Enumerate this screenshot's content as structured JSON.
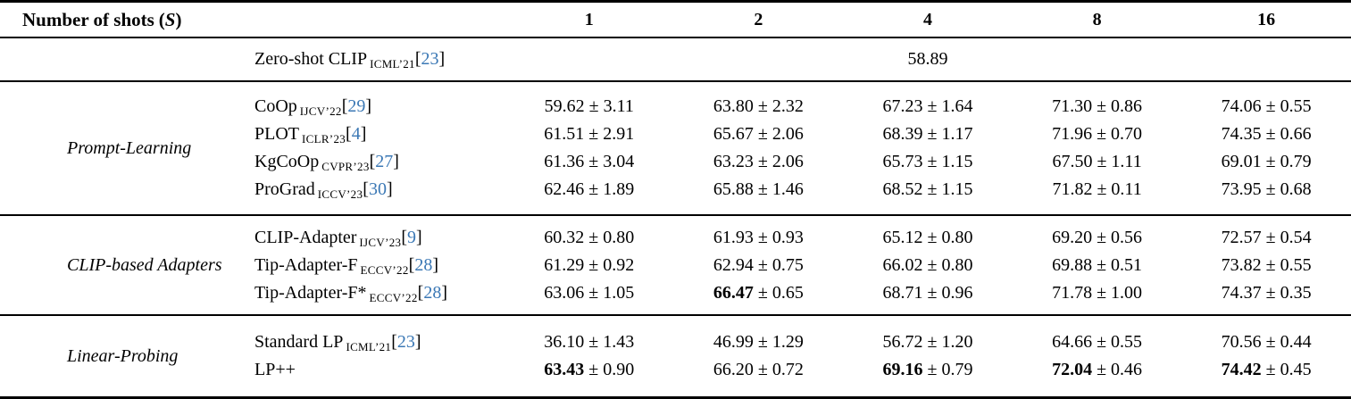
{
  "accent_colors": {
    "citation_blue": "#3b78b5",
    "text": "#000000",
    "background": "#ffffff"
  },
  "table": {
    "header": {
      "label": "Number of shots",
      "paren_open": "(",
      "symbol": "S",
      "paren_close": ")",
      "shot_columns": [
        "1",
        "2",
        "4",
        "8",
        "16"
      ]
    },
    "bracket_open": "[",
    "bracket_close": "]",
    "plus_minus": "±",
    "zero_shot_row": {
      "method": "Zero-shot CLIP",
      "venue": "ICML’21",
      "citation": "23",
      "value": "58.89"
    },
    "groups": [
      {
        "name": "Prompt-Learning",
        "rows": [
          {
            "method": "CoOp",
            "venue": "IJCV’22",
            "citation": "29",
            "cells": [
              {
                "value": "59.62",
                "pm": "3.11",
                "bold": false
              },
              {
                "value": "63.80",
                "pm": "2.32",
                "bold": false
              },
              {
                "value": "67.23",
                "pm": "1.64",
                "bold": false
              },
              {
                "value": "71.30",
                "pm": "0.86",
                "bold": false
              },
              {
                "value": "74.06",
                "pm": "0.55",
                "bold": false
              }
            ]
          },
          {
            "method": "PLOT",
            "venue": "ICLR’23",
            "citation": "4",
            "cells": [
              {
                "value": "61.51",
                "pm": "2.91",
                "bold": false
              },
              {
                "value": "65.67",
                "pm": "2.06",
                "bold": false
              },
              {
                "value": "68.39",
                "pm": "1.17",
                "bold": false
              },
              {
                "value": "71.96",
                "pm": "0.70",
                "bold": false
              },
              {
                "value": "74.35",
                "pm": "0.66",
                "bold": false
              }
            ]
          },
          {
            "method": "KgCoOp",
            "venue": "CVPR’23",
            "citation": "27",
            "cells": [
              {
                "value": "61.36",
                "pm": "3.04",
                "bold": false
              },
              {
                "value": "63.23",
                "pm": "2.06",
                "bold": false
              },
              {
                "value": "65.73",
                "pm": "1.15",
                "bold": false
              },
              {
                "value": "67.50",
                "pm": "1.11",
                "bold": false
              },
              {
                "value": "69.01",
                "pm": "0.79",
                "bold": false
              }
            ]
          },
          {
            "method": "ProGrad",
            "venue": "ICCV’23",
            "citation": "30",
            "cells": [
              {
                "value": "62.46",
                "pm": "1.89",
                "bold": false
              },
              {
                "value": "65.88",
                "pm": "1.46",
                "bold": false
              },
              {
                "value": "68.52",
                "pm": "1.15",
                "bold": false
              },
              {
                "value": "71.82",
                "pm": "0.11",
                "bold": false
              },
              {
                "value": "73.95",
                "pm": "0.68",
                "bold": false
              }
            ]
          }
        ]
      },
      {
        "name": "CLIP-based Adapters",
        "rows": [
          {
            "method": "CLIP-Adapter",
            "venue": "IJCV’23",
            "citation": "9",
            "cells": [
              {
                "value": "60.32",
                "pm": "0.80",
                "bold": false
              },
              {
                "value": "61.93",
                "pm": "0.93",
                "bold": false
              },
              {
                "value": "65.12",
                "pm": "0.80",
                "bold": false
              },
              {
                "value": "69.20",
                "pm": "0.56",
                "bold": false
              },
              {
                "value": "72.57",
                "pm": "0.54",
                "bold": false
              }
            ]
          },
          {
            "method": "Tip-Adapter-F",
            "venue": "ECCV’22",
            "citation": "28",
            "cells": [
              {
                "value": "61.29",
                "pm": "0.92",
                "bold": false
              },
              {
                "value": "62.94",
                "pm": "0.75",
                "bold": false
              },
              {
                "value": "66.02",
                "pm": "0.80",
                "bold": false
              },
              {
                "value": "69.88",
                "pm": "0.51",
                "bold": false
              },
              {
                "value": "73.82",
                "pm": "0.55",
                "bold": false
              }
            ]
          },
          {
            "method": "Tip-Adapter-F*",
            "venue": "ECCV’22",
            "citation": "28",
            "cells": [
              {
                "value": "63.06",
                "pm": "1.05",
                "bold": false
              },
              {
                "value": "66.47",
                "pm": "0.65",
                "bold": true
              },
              {
                "value": "68.71",
                "pm": "0.96",
                "bold": false
              },
              {
                "value": "71.78",
                "pm": "1.00",
                "bold": false
              },
              {
                "value": "74.37",
                "pm": "0.35",
                "bold": false
              }
            ]
          }
        ]
      },
      {
        "name": "Linear-Probing",
        "rows": [
          {
            "method": "Standard LP",
            "venue": "ICML’21",
            "citation": "23",
            "cells": [
              {
                "value": "36.10",
                "pm": "1.43",
                "bold": false
              },
              {
                "value": "46.99",
                "pm": "1.29",
                "bold": false
              },
              {
                "value": "56.72",
                "pm": "1.20",
                "bold": false
              },
              {
                "value": "64.66",
                "pm": "0.55",
                "bold": false
              },
              {
                "value": "70.56",
                "pm": "0.44",
                "bold": false
              }
            ]
          },
          {
            "method": "LP++",
            "venue": "",
            "citation": "",
            "cells": [
              {
                "value": "63.43",
                "pm": "0.90",
                "bold": true
              },
              {
                "value": "66.20",
                "pm": "0.72",
                "bold": false
              },
              {
                "value": "69.16",
                "pm": "0.79",
                "bold": true
              },
              {
                "value": "72.04",
                "pm": "0.46",
                "bold": true
              },
              {
                "value": "74.42",
                "pm": "0.45",
                "bold": true
              }
            ]
          }
        ]
      }
    ]
  }
}
